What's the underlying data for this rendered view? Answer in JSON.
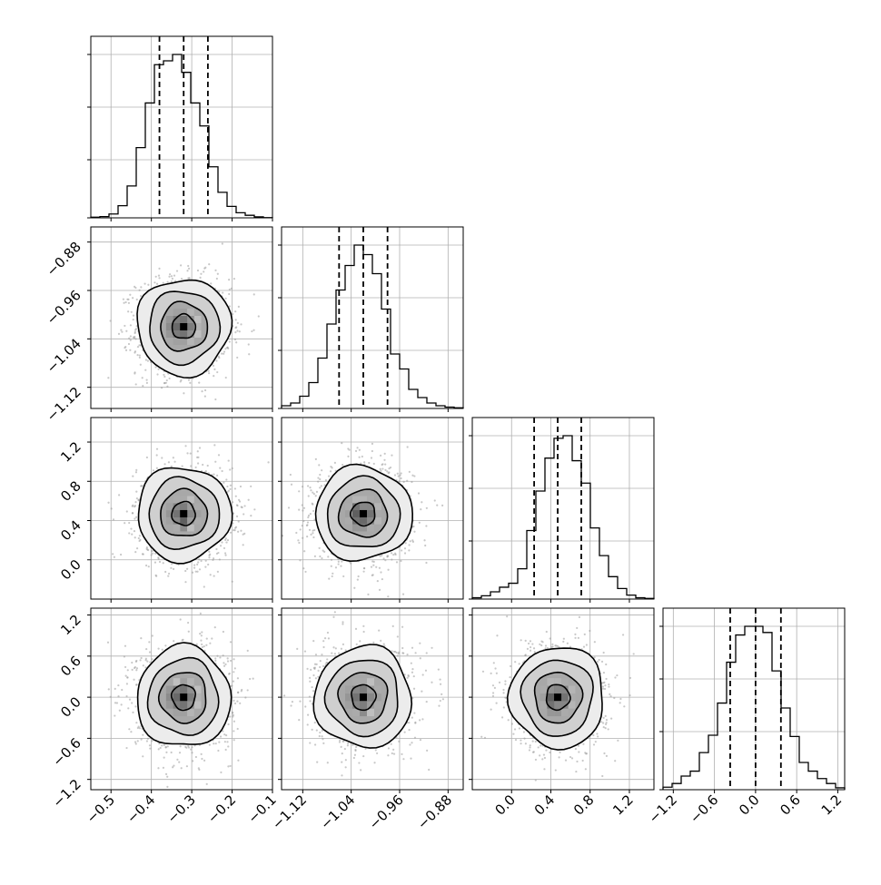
{
  "chart_data": {
    "type": "corner",
    "description_kind": "corner plot (pairwise posterior samples)",
    "grid": true,
    "parameters": [
      {
        "ticks": [
          -0.5,
          -0.4,
          -0.3,
          -0.2,
          -0.1
        ],
        "tick_labels": [
          "−0.5",
          "−0.4",
          "−0.3",
          "−0.2",
          "−0.1"
        ],
        "range": [
          -0.55,
          -0.1
        ],
        "mean": -0.32,
        "sd": 0.058,
        "quantiles": [
          -0.38,
          -0.32,
          -0.26
        ]
      },
      {
        "ticks": [
          -1.12,
          -1.04,
          -0.96,
          -0.88
        ],
        "tick_labels": [
          "−1.12",
          "−1.04",
          "−0.96",
          "−0.88"
        ],
        "range": [
          -1.155,
          -0.855
        ],
        "mean": -1.02,
        "sd": 0.04,
        "quantiles": [
          -1.06,
          -1.02,
          -0.98
        ]
      },
      {
        "ticks": [
          0.0,
          0.4,
          0.8,
          1.2
        ],
        "tick_labels": [
          "0.0",
          "0.4",
          "0.8",
          "1.2"
        ],
        "range": [
          -0.4,
          1.45
        ],
        "mean": 0.47,
        "sd": 0.24,
        "quantiles": [
          0.23,
          0.47,
          0.71
        ]
      },
      {
        "ticks": [
          -1.2,
          -0.6,
          0.0,
          0.6,
          1.2
        ],
        "tick_labels": [
          "−1.2",
          "−0.6",
          "0.0",
          "0.6",
          "1.2"
        ],
        "range": [
          -1.35,
          1.3
        ],
        "mean": 0.0,
        "sd": 0.37,
        "quantiles": [
          -0.37,
          0.0,
          0.37
        ]
      }
    ],
    "histograms": [
      {
        "param": 0,
        "bin_edges": [
          -0.55,
          -0.5275,
          -0.505,
          -0.4825,
          -0.46,
          -0.4375,
          -0.415,
          -0.3925,
          -0.37,
          -0.3475,
          -0.325,
          -0.3025,
          -0.28,
          -0.2575,
          -0.235,
          -0.2125,
          -0.19,
          -0.1675,
          -0.145,
          -0.1225,
          -0.1
        ],
        "counts": [
          5,
          10,
          30,
          95,
          250,
          550,
          900,
          1200,
          1230,
          1280,
          1140,
          900,
          720,
          400,
          200,
          90,
          40,
          20,
          8,
          2
        ]
      },
      {
        "param": 1,
        "bin_edges": [
          -1.155,
          -1.14,
          -1.125,
          -1.11,
          -1.095,
          -1.08,
          -1.065,
          -1.05,
          -1.035,
          -1.02,
          -1.005,
          -0.99,
          -0.975,
          -0.96,
          -0.945,
          -0.93,
          -0.915,
          -0.9,
          -0.885,
          -0.87,
          -0.855
        ],
        "counts": [
          20,
          40,
          90,
          190,
          370,
          620,
          870,
          1050,
          1200,
          1130,
          990,
          730,
          400,
          290,
          140,
          80,
          40,
          20,
          10,
          5
        ]
      },
      {
        "param": 2,
        "bin_edges": [
          -0.4,
          -0.3075,
          -0.215,
          -0.1225,
          -0.03,
          0.0625,
          0.155,
          0.2475,
          0.34,
          0.4325,
          0.525,
          0.6175,
          0.71,
          0.8025,
          0.895,
          0.9875,
          1.08,
          1.1725,
          1.265,
          1.3575,
          1.45
        ],
        "counts": [
          10,
          25,
          55,
          90,
          120,
          230,
          520,
          820,
          1070,
          1220,
          1240,
          1050,
          880,
          540,
          330,
          170,
          80,
          30,
          10,
          5
        ]
      },
      {
        "param": 3,
        "bin_edges": [
          -1.35,
          -1.2175,
          -1.085,
          -0.9525,
          -0.82,
          -0.6875,
          -0.555,
          -0.4225,
          -0.29,
          -0.1575,
          -0.025,
          0.1075,
          0.24,
          0.3725,
          0.505,
          0.6375,
          0.77,
          0.9025,
          1.035,
          1.1675,
          1.3
        ],
        "counts": [
          20,
          50,
          110,
          150,
          300,
          440,
          700,
          1030,
          1250,
          1320,
          1320,
          1270,
          960,
          660,
          430,
          220,
          150,
          90,
          50,
          15
        ]
      }
    ],
    "contour_levels_sigma": [
      0.5,
      1.0,
      1.5,
      2.0
    ],
    "pairs": [
      {
        "x": 0,
        "y": 1,
        "corr": 0.0
      },
      {
        "x": 0,
        "y": 2,
        "corr": 0.0
      },
      {
        "x": 1,
        "y": 2,
        "corr": 0.0
      },
      {
        "x": 0,
        "y": 3,
        "corr": 0.0
      },
      {
        "x": 1,
        "y": 3,
        "corr": 0.0
      },
      {
        "x": 2,
        "y": 3,
        "corr": 0.0
      }
    ]
  }
}
